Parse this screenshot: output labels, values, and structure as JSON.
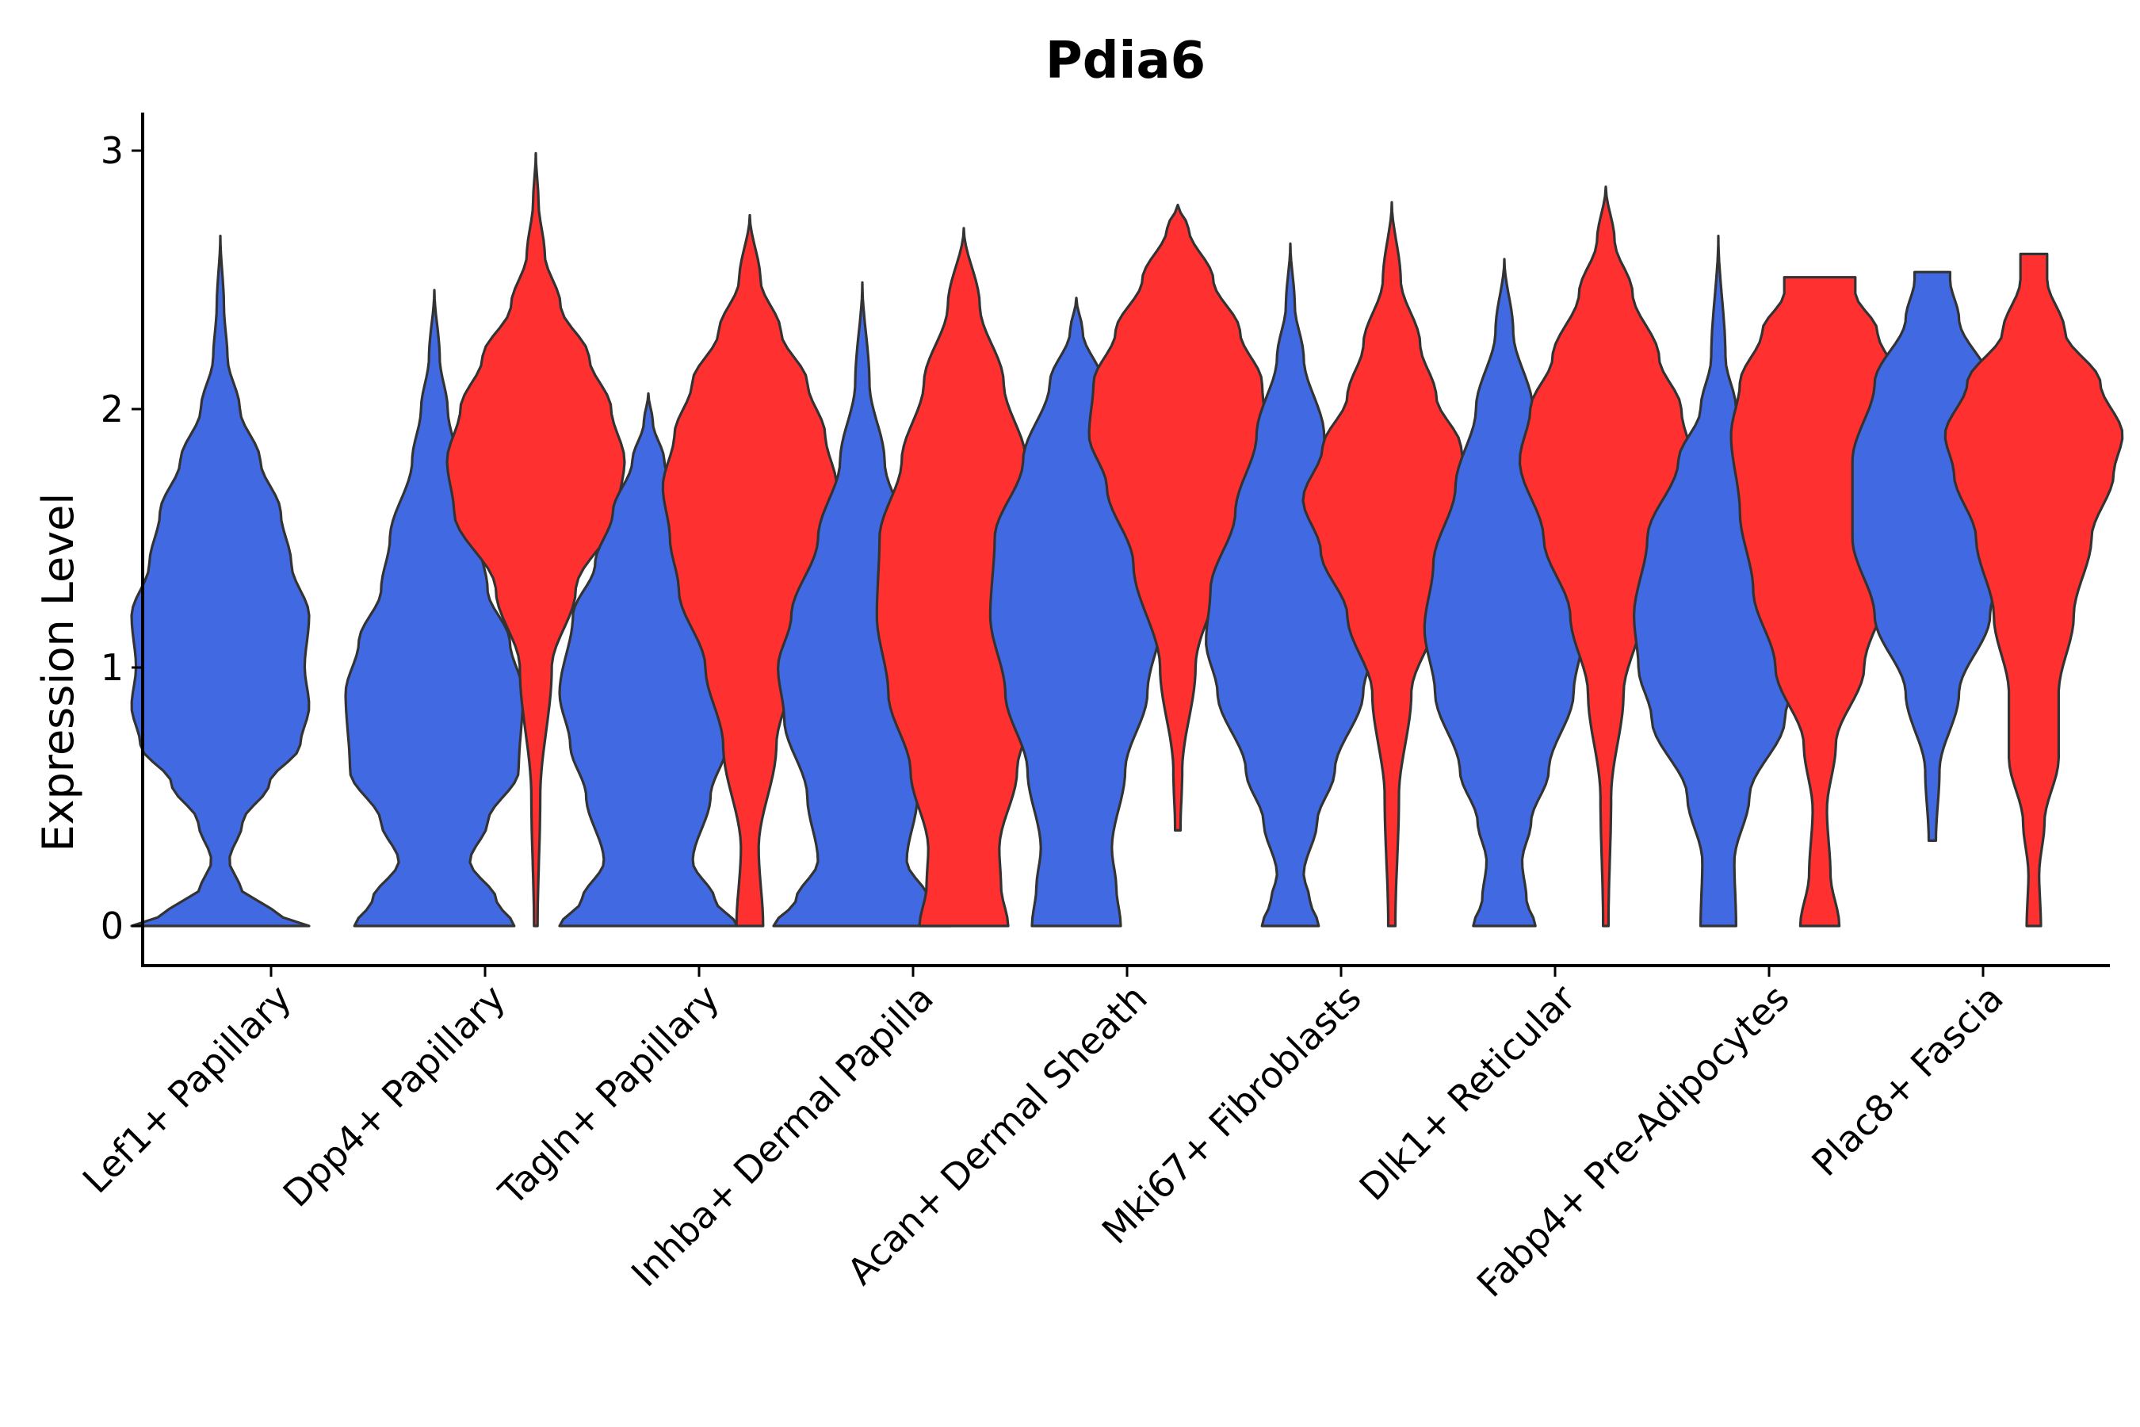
{
  "chart_data": {
    "type": "violin",
    "title": "Pdia6",
    "xlabel": "",
    "ylabel": "Expression Level",
    "ylim": [
      -0.15,
      3.15
    ],
    "yticks": [
      0,
      1,
      2,
      3
    ],
    "grid": false,
    "colors": {
      "blue": "#4169E1",
      "red": "#FF3030"
    },
    "categories": [
      "Lef1+ Papillary",
      "Dpp4+ Papillary",
      "Tagln+ Papillary",
      "Inhba+ Dermal Papilla",
      "Acan+ Dermal Sheath",
      "Mki67+ Fibroblasts",
      "Dlk1+ Reticular",
      "Fabp4+ Pre-Adipocytes",
      "Plac8+ Fascia"
    ],
    "violins": [
      {
        "category": "Lef1+ Papillary",
        "side": "blue",
        "min": 0,
        "max": 2.67,
        "profile": [
          [
            0,
            1.0
          ],
          [
            0.05,
            0.6
          ],
          [
            0.15,
            0.22
          ],
          [
            0.25,
            0.1
          ],
          [
            0.4,
            0.25
          ],
          [
            0.55,
            0.55
          ],
          [
            0.7,
            0.9
          ],
          [
            0.85,
            1.0
          ],
          [
            1.0,
            0.95
          ],
          [
            1.2,
            1.0
          ],
          [
            1.4,
            0.8
          ],
          [
            1.6,
            0.68
          ],
          [
            1.8,
            0.45
          ],
          [
            2.0,
            0.22
          ],
          [
            2.2,
            0.08
          ],
          [
            2.4,
            0.04
          ],
          [
            2.67,
            0.0
          ]
        ]
      },
      {
        "category": "Dpp4+ Papillary",
        "side": "blue",
        "min": 0,
        "max": 2.46,
        "profile": [
          [
            0,
            0.9
          ],
          [
            0.1,
            0.7
          ],
          [
            0.25,
            0.4
          ],
          [
            0.4,
            0.6
          ],
          [
            0.6,
            0.95
          ],
          [
            0.9,
            1.0
          ],
          [
            1.1,
            0.85
          ],
          [
            1.3,
            0.6
          ],
          [
            1.5,
            0.5
          ],
          [
            1.8,
            0.25
          ],
          [
            2.0,
            0.15
          ],
          [
            2.2,
            0.06
          ],
          [
            2.46,
            0.0
          ]
        ]
      },
      {
        "category": "Dpp4+ Papillary",
        "side": "red",
        "min": 0,
        "max": 2.99,
        "profile": [
          [
            0,
            0.02
          ],
          [
            0.5,
            0.05
          ],
          [
            1.0,
            0.18
          ],
          [
            1.3,
            0.45
          ],
          [
            1.6,
            0.92
          ],
          [
            1.8,
            1.0
          ],
          [
            2.0,
            0.85
          ],
          [
            2.2,
            0.6
          ],
          [
            2.4,
            0.28
          ],
          [
            2.6,
            0.1
          ],
          [
            2.8,
            0.03
          ],
          [
            2.99,
            0.0
          ]
        ]
      },
      {
        "category": "Tagln+ Papillary",
        "side": "blue",
        "min": 0,
        "max": 2.06,
        "profile": [
          [
            0,
            1.0
          ],
          [
            0.1,
            0.75
          ],
          [
            0.25,
            0.5
          ],
          [
            0.5,
            0.7
          ],
          [
            0.7,
            0.88
          ],
          [
            0.9,
            1.0
          ],
          [
            1.2,
            0.85
          ],
          [
            1.4,
            0.6
          ],
          [
            1.6,
            0.4
          ],
          [
            1.8,
            0.18
          ],
          [
            1.95,
            0.05
          ],
          [
            2.06,
            0.0
          ]
        ]
      },
      {
        "category": "Tagln+ Papillary",
        "side": "red",
        "min": 0,
        "max": 2.75,
        "profile": [
          [
            0,
            0.15
          ],
          [
            0.3,
            0.1
          ],
          [
            0.7,
            0.3
          ],
          [
            1.0,
            0.5
          ],
          [
            1.3,
            0.8
          ],
          [
            1.5,
            0.9
          ],
          [
            1.7,
            0.98
          ],
          [
            1.9,
            0.85
          ],
          [
            2.1,
            0.65
          ],
          [
            2.3,
            0.35
          ],
          [
            2.5,
            0.12
          ],
          [
            2.75,
            0.0
          ]
        ]
      },
      {
        "category": "Inhba+ Dermal Papilla",
        "side": "blue",
        "min": 0,
        "max": 2.49,
        "profile": [
          [
            0,
            1.0
          ],
          [
            0.1,
            0.75
          ],
          [
            0.25,
            0.5
          ],
          [
            0.5,
            0.62
          ],
          [
            0.8,
            0.88
          ],
          [
            1.0,
            0.95
          ],
          [
            1.2,
            0.8
          ],
          [
            1.5,
            0.5
          ],
          [
            1.8,
            0.25
          ],
          [
            2.1,
            0.08
          ],
          [
            2.49,
            0.0
          ]
        ]
      },
      {
        "category": "Inhba+ Dermal Papilla",
        "side": "red",
        "min": 0,
        "max": 2.7,
        "profile": [
          [
            0,
            0.5
          ],
          [
            0.15,
            0.42
          ],
          [
            0.3,
            0.4
          ],
          [
            0.6,
            0.6
          ],
          [
            0.9,
            0.85
          ],
          [
            1.2,
            0.98
          ],
          [
            1.5,
            0.95
          ],
          [
            1.8,
            0.7
          ],
          [
            2.1,
            0.45
          ],
          [
            2.4,
            0.18
          ],
          [
            2.7,
            0.0
          ]
        ]
      },
      {
        "category": "Acan+ Dermal Sheath",
        "side": "blue",
        "min": 0,
        "max": 2.43,
        "profile": [
          [
            0,
            0.5
          ],
          [
            0.15,
            0.45
          ],
          [
            0.3,
            0.4
          ],
          [
            0.6,
            0.55
          ],
          [
            0.9,
            0.8
          ],
          [
            1.2,
            0.97
          ],
          [
            1.5,
            0.92
          ],
          [
            1.8,
            0.6
          ],
          [
            2.1,
            0.3
          ],
          [
            2.3,
            0.07
          ],
          [
            2.43,
            0.0
          ]
        ]
      },
      {
        "category": "Acan+ Dermal Sheath",
        "side": "red",
        "min": 0.37,
        "max": 2.79,
        "profile": [
          [
            0.37,
            0.03
          ],
          [
            0.6,
            0.05
          ],
          [
            1.0,
            0.2
          ],
          [
            1.4,
            0.5
          ],
          [
            1.7,
            0.8
          ],
          [
            1.9,
            1.0
          ],
          [
            2.1,
            0.95
          ],
          [
            2.3,
            0.7
          ],
          [
            2.5,
            0.4
          ],
          [
            2.7,
            0.12
          ],
          [
            2.79,
            0.0
          ]
        ]
      },
      {
        "category": "Mki67+ Fibroblasts",
        "side": "blue",
        "min": 0,
        "max": 2.64,
        "profile": [
          [
            0,
            0.32
          ],
          [
            0.1,
            0.22
          ],
          [
            0.2,
            0.15
          ],
          [
            0.4,
            0.3
          ],
          [
            0.6,
            0.5
          ],
          [
            0.9,
            0.82
          ],
          [
            1.1,
            0.95
          ],
          [
            1.3,
            0.9
          ],
          [
            1.6,
            0.62
          ],
          [
            1.9,
            0.38
          ],
          [
            2.2,
            0.15
          ],
          [
            2.4,
            0.05
          ],
          [
            2.64,
            0.0
          ]
        ]
      },
      {
        "category": "Mki67+ Fibroblasts",
        "side": "red",
        "min": 0,
        "max": 2.8,
        "profile": [
          [
            0,
            0.04
          ],
          [
            0.5,
            0.08
          ],
          [
            0.9,
            0.22
          ],
          [
            1.2,
            0.5
          ],
          [
            1.45,
            0.8
          ],
          [
            1.65,
            1.0
          ],
          [
            1.85,
            0.78
          ],
          [
            2.05,
            0.5
          ],
          [
            2.25,
            0.32
          ],
          [
            2.5,
            0.1
          ],
          [
            2.8,
            0.0
          ]
        ]
      },
      {
        "category": "Dlk1+ Reticular",
        "side": "blue",
        "min": 0,
        "max": 2.58,
        "profile": [
          [
            0,
            0.35
          ],
          [
            0.1,
            0.25
          ],
          [
            0.25,
            0.2
          ],
          [
            0.4,
            0.3
          ],
          [
            0.6,
            0.5
          ],
          [
            0.9,
            0.78
          ],
          [
            1.15,
            0.9
          ],
          [
            1.4,
            0.8
          ],
          [
            1.7,
            0.55
          ],
          [
            2.0,
            0.32
          ],
          [
            2.3,
            0.1
          ],
          [
            2.58,
            0.0
          ]
        ]
      },
      {
        "category": "Dlk1+ Reticular",
        "side": "red",
        "min": 0,
        "max": 2.86,
        "profile": [
          [
            0,
            0.03
          ],
          [
            0.5,
            0.06
          ],
          [
            0.9,
            0.2
          ],
          [
            1.2,
            0.4
          ],
          [
            1.5,
            0.7
          ],
          [
            1.8,
            0.97
          ],
          [
            2.0,
            0.85
          ],
          [
            2.2,
            0.6
          ],
          [
            2.45,
            0.3
          ],
          [
            2.65,
            0.1
          ],
          [
            2.86,
            0.0
          ]
        ]
      },
      {
        "category": "Fabp4+ Pre-Adipocytes",
        "side": "blue",
        "min": 0,
        "max": 2.67,
        "profile": [
          [
            0,
            0.2
          ],
          [
            0.25,
            0.18
          ],
          [
            0.5,
            0.35
          ],
          [
            0.8,
            0.75
          ],
          [
            1.0,
            0.9
          ],
          [
            1.2,
            0.95
          ],
          [
            1.5,
            0.8
          ],
          [
            1.8,
            0.45
          ],
          [
            2.0,
            0.2
          ],
          [
            2.2,
            0.08
          ],
          [
            2.67,
            0.0
          ]
        ]
      },
      {
        "category": "Fabp4+ Pre-Adipocytes",
        "side": "red",
        "min": 0,
        "max": 2.51,
        "profile": [
          [
            0,
            0.22
          ],
          [
            0.2,
            0.12
          ],
          [
            0.45,
            0.08
          ],
          [
            0.7,
            0.18
          ],
          [
            1.0,
            0.5
          ],
          [
            1.3,
            0.75
          ],
          [
            1.6,
            0.9
          ],
          [
            1.9,
            1.0
          ],
          [
            2.1,
            0.9
          ],
          [
            2.3,
            0.65
          ],
          [
            2.45,
            0.4
          ],
          [
            2.51,
            0.4
          ]
        ]
      },
      {
        "category": "Plac8+ Fascia",
        "side": "blue",
        "min": 0.33,
        "max": 2.53,
        "profile": [
          [
            0.33,
            0.04
          ],
          [
            0.6,
            0.08
          ],
          [
            0.9,
            0.3
          ],
          [
            1.2,
            0.65
          ],
          [
            1.5,
            0.9
          ],
          [
            1.8,
            0.9
          ],
          [
            2.1,
            0.65
          ],
          [
            2.35,
            0.3
          ],
          [
            2.5,
            0.2
          ],
          [
            2.53,
            0.2
          ]
        ]
      },
      {
        "category": "Plac8+ Fascia",
        "side": "red",
        "min": 0,
        "max": 2.6,
        "profile": [
          [
            0,
            0.08
          ],
          [
            0.2,
            0.06
          ],
          [
            0.4,
            0.12
          ],
          [
            0.65,
            0.28
          ],
          [
            0.9,
            0.28
          ],
          [
            1.2,
            0.45
          ],
          [
            1.5,
            0.65
          ],
          [
            1.75,
            0.9
          ],
          [
            1.9,
            1.0
          ],
          [
            2.1,
            0.75
          ],
          [
            2.3,
            0.35
          ],
          [
            2.5,
            0.15
          ],
          [
            2.6,
            0.15
          ]
        ]
      }
    ]
  }
}
